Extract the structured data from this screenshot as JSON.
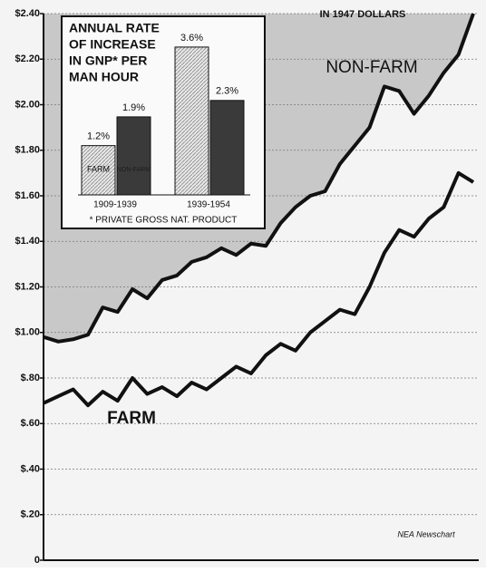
{
  "chart_data": [
    {
      "type": "line",
      "subtitle": "IN 1947 DOLLARS",
      "categories": [
        null,
        null,
        null,
        null,
        null,
        null,
        null,
        null,
        null,
        null,
        null,
        null,
        null,
        null,
        null,
        null,
        null,
        null,
        null,
        null,
        null,
        null,
        null,
        null,
        null,
        null,
        null,
        null,
        null,
        null
      ],
      "series": [
        {
          "name": "NON-FARM",
          "color": "#111111",
          "values": [
            0.98,
            0.96,
            0.97,
            0.99,
            1.11,
            1.09,
            1.19,
            1.15,
            1.23,
            1.25,
            1.31,
            1.33,
            1.37,
            1.34,
            1.39,
            1.38,
            1.48,
            1.55,
            1.6,
            1.62,
            1.74,
            1.82,
            1.9,
            2.08,
            2.06,
            1.96,
            2.04,
            2.14,
            2.22,
            2.4
          ]
        },
        {
          "name": "FARM",
          "color": "#111111",
          "values": [
            0.69,
            0.72,
            0.75,
            0.68,
            0.74,
            0.7,
            0.8,
            0.73,
            0.76,
            0.72,
            0.78,
            0.75,
            0.8,
            0.85,
            0.82,
            0.9,
            0.95,
            0.92,
            1.0,
            1.05,
            1.1,
            1.08,
            1.2,
            1.35,
            1.45,
            1.42,
            1.5,
            1.55,
            1.7,
            1.66
          ]
        }
      ],
      "ylim": [
        0,
        2.4
      ],
      "yticks": [
        0,
        {
          "value": 0.2,
          "label": "$.20"
        },
        {
          "value": 0.4,
          "label": "$.40"
        },
        {
          "value": 0.6,
          "label": "$.60"
        },
        {
          "value": 0.8,
          "label": "$.80"
        },
        {
          "value": 1.0,
          "label": "$1.00"
        },
        {
          "value": 1.2,
          "label": "$1.20"
        },
        {
          "value": 1.4,
          "label": "$1.40"
        },
        {
          "value": 1.6,
          "label": "$1.60"
        },
        {
          "value": 1.8,
          "label": "$1.80"
        },
        {
          "value": 2.0,
          "label": "$2.00"
        },
        {
          "value": 2.2,
          "label": "$2.20"
        },
        {
          "value": 2.4,
          "label": "$2.40"
        }
      ],
      "grid": true,
      "source": "NEA Newschart"
    },
    {
      "type": "bar",
      "title": [
        "ANNUAL RATE",
        "OF INCREASE",
        "IN GNP* PER",
        "MAN HOUR"
      ],
      "categories": [
        "1909-1939",
        "1939-1954"
      ],
      "series": [
        {
          "name": "FARM",
          "color": "#c4c4c4",
          "values": [
            1.2,
            3.6
          ],
          "value_labels": [
            "1.2%",
            "3.6%"
          ]
        },
        {
          "name": "NON-FARM",
          "color": "#3a3a3a",
          "values": [
            1.9,
            2.3
          ],
          "value_labels": [
            "1.9%",
            "2.3%"
          ]
        }
      ],
      "footnote": "* PRIVATE GROSS NAT. PRODUCT"
    }
  ]
}
